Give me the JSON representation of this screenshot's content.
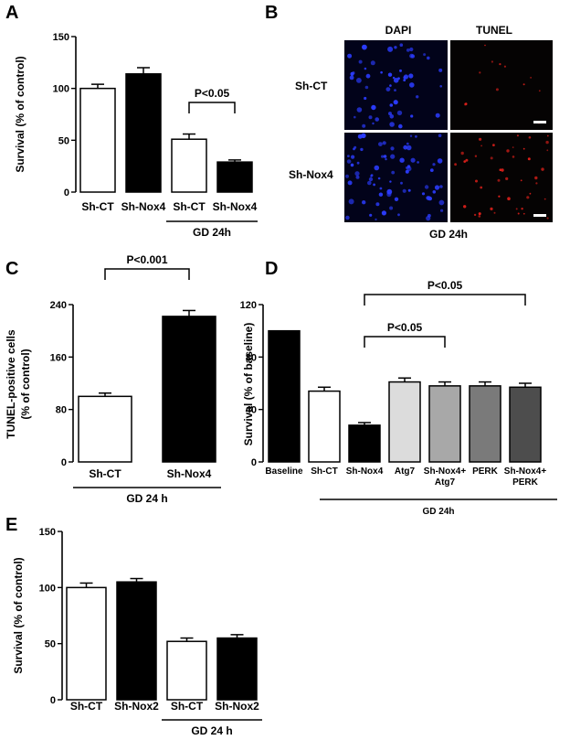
{
  "panels": {
    "A": "A",
    "B": "B",
    "C": "C",
    "D": "D",
    "E": "E"
  },
  "panel_b": {
    "columns": [
      "DAPI",
      "TUNEL"
    ],
    "rows": [
      "Sh-CT",
      "Sh-Nox4"
    ],
    "condition": "GD  24h"
  },
  "chart_data": [
    {
      "panel": "A",
      "type": "bar",
      "ylabel": "Survival (% of control)",
      "ylim": [
        0,
        150
      ],
      "yticks": [
        0,
        50,
        100,
        150
      ],
      "categories": [
        "Sh-CT",
        "Sh-Nox4",
        "Sh-CT",
        "Sh-Nox4"
      ],
      "values": [
        100,
        114,
        51,
        29
      ],
      "errors": [
        4,
        6,
        5,
        2
      ],
      "fills": [
        "#ffffff",
        "#000000",
        "#ffffff",
        "#000000"
      ],
      "group_label": "GD  24h",
      "group_span": [
        2,
        3
      ],
      "annotations": [
        {
          "text": "P<0.05",
          "from": 2,
          "to": 3
        }
      ]
    },
    {
      "panel": "C",
      "type": "bar",
      "ylabel": "TUNEL-positive cells (% of control)",
      "ylabel_lines": [
        "TUNEL-positive cells",
        "(% of control)"
      ],
      "ylim": [
        0,
        240
      ],
      "yticks": [
        0,
        80,
        160,
        240
      ],
      "categories": [
        "Sh-CT",
        "Sh-Nox4"
      ],
      "values": [
        100,
        222
      ],
      "errors": [
        5,
        9
      ],
      "fills": [
        "#ffffff",
        "#000000"
      ],
      "group_label": "GD  24 h",
      "group_span": [
        0,
        1
      ],
      "annotations": [
        {
          "text": "P<0.001",
          "from": 0,
          "to": 1
        }
      ]
    },
    {
      "panel": "D",
      "type": "bar",
      "ylabel": "Survival (% of baseline)",
      "ylim": [
        0,
        120
      ],
      "yticks": [
        0,
        40,
        80,
        120
      ],
      "categories": [
        "Baseline",
        "Sh-CT",
        "Sh-Nox4",
        "Atg7",
        "Sh-Nox4+\nAtg7",
        "PERK",
        "Sh-Nox4+\nPERK"
      ],
      "values": [
        100,
        54,
        28,
        61,
        58,
        58,
        57
      ],
      "errors": [
        0,
        3,
        2,
        3,
        3,
        3,
        3
      ],
      "fills": [
        "#000000",
        "#ffffff",
        "#000000",
        "#dcdcdc",
        "#a8a8a8",
        "#7a7a7a",
        "#4d4d4d"
      ],
      "group_label": "GD  24h",
      "group_span": [
        2,
        6
      ],
      "annotations": [
        {
          "text": "P<0.05",
          "from": 2,
          "to": 6
        },
        {
          "text": "P<0.05",
          "from": 2,
          "to": 4
        }
      ]
    },
    {
      "panel": "E",
      "type": "bar",
      "ylabel": "Survival (% of control)",
      "ylim": [
        0,
        150
      ],
      "yticks": [
        0,
        50,
        100,
        150
      ],
      "categories": [
        "Sh-CT",
        "Sh-Nox2",
        "Sh-CT",
        "Sh-Nox2"
      ],
      "values": [
        100,
        105,
        52,
        55
      ],
      "errors": [
        4,
        3,
        3,
        3
      ],
      "fills": [
        "#ffffff",
        "#000000",
        "#ffffff",
        "#000000"
      ],
      "group_label": "GD  24 h",
      "group_span": [
        2,
        3
      ],
      "annotations": []
    }
  ]
}
